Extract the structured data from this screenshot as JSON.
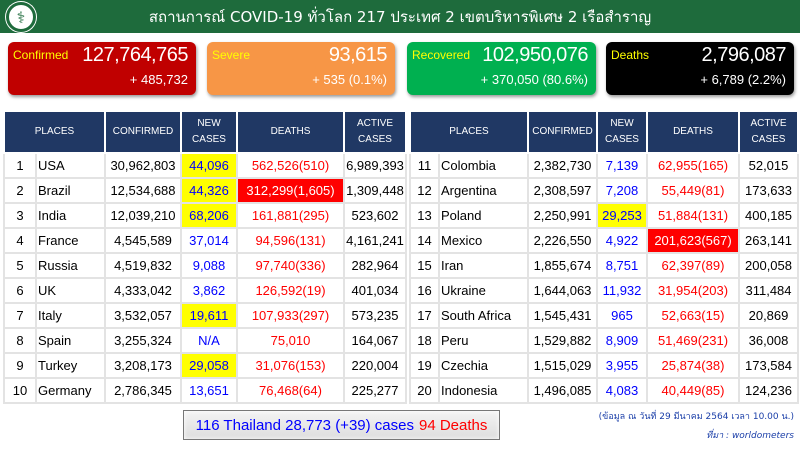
{
  "header": {
    "title": "สถานการณ์ COVID-19 ทั่วโลก 217 ประเทศ 2 เขตบริหารพิเศษ 2 เรือสำราญ",
    "logo": "department-of-disease-control-logo"
  },
  "summary": [
    {
      "label": "Confirmed",
      "total": "127,764,765",
      "change": "+ 485,732",
      "color": "#c00000"
    },
    {
      "label": "Severe",
      "total": "93,615",
      "change": "+ 535 (0.1%)",
      "color": "#f79646"
    },
    {
      "label": "Recovered",
      "total": "102,950,076",
      "change": "+ 370,050 (80.6%)",
      "color": "#00b050"
    },
    {
      "label": "Deaths",
      "total": "2,796,087",
      "change": "+ 6,789 (2.2%)",
      "color": "#000000"
    }
  ],
  "columns": [
    "PLACES",
    "CONFIRMED",
    "NEW CASES",
    "DEATHS",
    "ACTIVE CASES"
  ],
  "rows": [
    {
      "rank": "1",
      "place": "USA",
      "confirmed": "30,962,803",
      "new": "44,096",
      "new_hl": true,
      "deaths": "562,526(510)",
      "deaths_hl": false,
      "active": "6,989,393"
    },
    {
      "rank": "2",
      "place": "Brazil",
      "confirmed": "12,534,688",
      "new": "44,326",
      "new_hl": true,
      "deaths": "312,299(1,605)",
      "deaths_hl": true,
      "active": "1,309,448"
    },
    {
      "rank": "3",
      "place": "India",
      "confirmed": "12,039,210",
      "new": "68,206",
      "new_hl": true,
      "deaths": "161,881(295)",
      "deaths_hl": false,
      "active": "523,602"
    },
    {
      "rank": "4",
      "place": "France",
      "confirmed": "4,545,589",
      "new": "37,014",
      "new_hl": false,
      "deaths": "94,596(131)",
      "deaths_hl": false,
      "active": "4,161,241"
    },
    {
      "rank": "5",
      "place": "Russia",
      "confirmed": "4,519,832",
      "new": "9,088",
      "new_hl": false,
      "deaths": "97,740(336)",
      "deaths_hl": false,
      "active": "282,964"
    },
    {
      "rank": "6",
      "place": "UK",
      "confirmed": "4,333,042",
      "new": "3,862",
      "new_hl": false,
      "deaths": "126,592(19)",
      "deaths_hl": false,
      "active": "401,034"
    },
    {
      "rank": "7",
      "place": "Italy",
      "confirmed": "3,532,057",
      "new": "19,611",
      "new_hl": true,
      "deaths": "107,933(297)",
      "deaths_hl": false,
      "active": "573,235"
    },
    {
      "rank": "8",
      "place": "Spain",
      "confirmed": "3,255,324",
      "new": "N/A",
      "new_hl": false,
      "deaths": "75,010",
      "deaths_hl": false,
      "active": "164,067"
    },
    {
      "rank": "9",
      "place": "Turkey",
      "confirmed": "3,208,173",
      "new": "29,058",
      "new_hl": true,
      "deaths": "31,076(153)",
      "deaths_hl": false,
      "active": "220,004"
    },
    {
      "rank": "10",
      "place": "Germany",
      "confirmed": "2,786,345",
      "new": "13,651",
      "new_hl": false,
      "deaths": "76,468(64)",
      "deaths_hl": false,
      "active": "225,277"
    },
    {
      "rank": "11",
      "place": "Colombia",
      "confirmed": "2,382,730",
      "new": "7,139",
      "new_hl": false,
      "deaths": "62,955(165)",
      "deaths_hl": false,
      "active": "52,015"
    },
    {
      "rank": "12",
      "place": "Argentina",
      "confirmed": "2,308,597",
      "new": "7,208",
      "new_hl": false,
      "deaths": "55,449(81)",
      "deaths_hl": false,
      "active": "173,633"
    },
    {
      "rank": "13",
      "place": "Poland",
      "confirmed": "2,250,991",
      "new": "29,253",
      "new_hl": true,
      "deaths": "51,884(131)",
      "deaths_hl": false,
      "active": "400,185"
    },
    {
      "rank": "14",
      "place": "Mexico",
      "confirmed": "2,226,550",
      "new": "4,922",
      "new_hl": false,
      "deaths": "201,623(567)",
      "deaths_hl": true,
      "active": "263,141"
    },
    {
      "rank": "15",
      "place": "Iran",
      "confirmed": "1,855,674",
      "new": "8,751",
      "new_hl": false,
      "deaths": "62,397(89)",
      "deaths_hl": false,
      "active": "200,058"
    },
    {
      "rank": "16",
      "place": "Ukraine",
      "confirmed": "1,644,063",
      "new": "11,932",
      "new_hl": false,
      "deaths": "31,954(203)",
      "deaths_hl": false,
      "active": "311,484"
    },
    {
      "rank": "17",
      "place": "South Africa",
      "confirmed": "1,545,431",
      "new": "965",
      "new_hl": false,
      "deaths": "52,663(15)",
      "deaths_hl": false,
      "active": "20,869"
    },
    {
      "rank": "18",
      "place": "Peru",
      "confirmed": "1,529,882",
      "new": "8,909",
      "new_hl": false,
      "deaths": "51,469(231)",
      "deaths_hl": false,
      "active": "36,008"
    },
    {
      "rank": "19",
      "place": "Czechia",
      "confirmed": "1,515,029",
      "new": "3,955",
      "new_hl": false,
      "deaths": "25,874(38)",
      "deaths_hl": false,
      "active": "173,584"
    },
    {
      "rank": "20",
      "place": "Indonesia",
      "confirmed": "1,496,085",
      "new": "4,083",
      "new_hl": false,
      "deaths": "40,449(85)",
      "deaths_hl": false,
      "active": "124,236"
    }
  ],
  "thailand": {
    "text": "116 Thailand 28,773 (+39) cases",
    "deaths": "94 Deaths"
  },
  "note": {
    "date": "(ข้อมูล ณ วันที่ 29 มีนาคม 2564 เวลา 10.00 น.)",
    "source": "ที่มา : worldometers"
  }
}
